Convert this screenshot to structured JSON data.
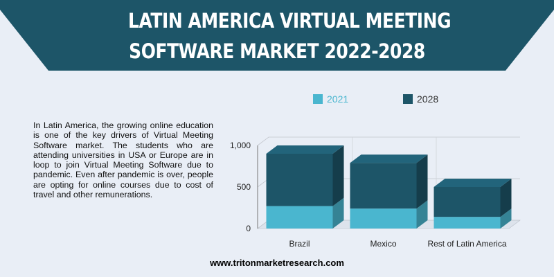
{
  "title": {
    "line1": "LATIN AMERICA VIRTUAL MEETING",
    "line2": "SOFTWARE MARKET 2022-2028"
  },
  "description": "In Latin America, the growing online education is one of the key drivers of Virtual Meeting Software market. The students who are attending universities in USA or Europe are in loop to join Virtual Meeting Software due to pandemic. Even after pandemic is over, people are opting for online courses due to cost of travel and other remunerations.",
  "footer_url": "www.tritonmarketresearch.com",
  "colors": {
    "banner": "#1d5568",
    "series_2021": "#4ab6cf",
    "series_2028": "#1d5568"
  },
  "legend": [
    {
      "label": "2021",
      "color": "#4ab6cf",
      "text_color": "#4ab6cf"
    },
    {
      "label": "2028",
      "color": "#1d5568",
      "text_color": "#333333"
    }
  ],
  "chart_data": {
    "type": "bar",
    "stacked": true,
    "style": "3d",
    "categories": [
      "Brazil",
      "Mexico",
      "Rest of Latin America"
    ],
    "series": [
      {
        "name": "2021",
        "values": [
          270,
          240,
          140
        ]
      },
      {
        "name": "2028",
        "values": [
          630,
          550,
          360
        ]
      }
    ],
    "yticks": [
      0,
      500,
      1000
    ],
    "ytick_labels": [
      "0",
      "500",
      "1,000"
    ],
    "ylim": [
      0,
      1000
    ],
    "grid": true,
    "legend_position": "top"
  }
}
